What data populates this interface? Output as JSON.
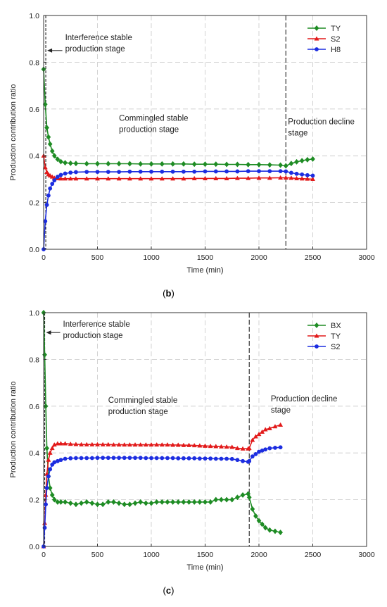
{
  "chart_data": [
    {
      "type": "line",
      "panel_label": "b",
      "xlabel": "Time (min)",
      "ylabel": "Production contribution ratio",
      "xlim": [
        0,
        3000
      ],
      "ylim": [
        0,
        1.0
      ],
      "xticks": [
        0,
        500,
        1000,
        1500,
        2000,
        2500,
        3000
      ],
      "yticks": [
        0.0,
        0.2,
        0.4,
        0.6,
        0.8,
        1.0
      ],
      "grid": true,
      "legend_position": "top-right",
      "stage_boundaries": [
        20,
        2250
      ],
      "annotations": [
        {
          "lines": [
            "Interference stable",
            "production stage"
          ],
          "x": 200,
          "y": 0.895,
          "arrow_to": [
            20,
            0.85
          ]
        },
        {
          "lines": [
            "Commingled stable",
            "production stage"
          ],
          "x": 700,
          "y": 0.55
        },
        {
          "lines": [
            "Production decline",
            "stage"
          ],
          "x": 2270,
          "y": 0.535
        }
      ],
      "series": [
        {
          "name": "TY",
          "color": "#1e8c24",
          "marker": "diamond",
          "x": [
            0,
            15,
            30,
            45,
            60,
            80,
            100,
            130,
            160,
            200,
            250,
            300,
            400,
            500,
            600,
            700,
            800,
            900,
            1000,
            1100,
            1200,
            1300,
            1400,
            1500,
            1600,
            1700,
            1800,
            1900,
            2000,
            2100,
            2200,
            2250,
            2300,
            2350,
            2400,
            2450,
            2500
          ],
          "y": [
            0.77,
            0.62,
            0.52,
            0.48,
            0.45,
            0.42,
            0.4,
            0.385,
            0.375,
            0.37,
            0.368,
            0.367,
            0.366,
            0.366,
            0.366,
            0.366,
            0.366,
            0.365,
            0.365,
            0.365,
            0.365,
            0.365,
            0.364,
            0.364,
            0.364,
            0.363,
            0.363,
            0.362,
            0.362,
            0.361,
            0.36,
            0.357,
            0.367,
            0.374,
            0.379,
            0.383,
            0.386
          ]
        },
        {
          "name": "S2",
          "color": "#e21a1a",
          "marker": "triangle",
          "x": [
            0,
            15,
            30,
            45,
            60,
            80,
            100,
            130,
            160,
            200,
            250,
            300,
            400,
            500,
            600,
            700,
            800,
            900,
            1000,
            1100,
            1200,
            1300,
            1400,
            1500,
            1600,
            1700,
            1800,
            1900,
            2000,
            2100,
            2200,
            2250,
            2300,
            2350,
            2400,
            2450,
            2500
          ],
          "y": [
            0.4,
            0.35,
            0.33,
            0.32,
            0.315,
            0.31,
            0.305,
            0.303,
            0.302,
            0.302,
            0.302,
            0.302,
            0.302,
            0.302,
            0.302,
            0.302,
            0.302,
            0.302,
            0.302,
            0.302,
            0.302,
            0.302,
            0.303,
            0.303,
            0.303,
            0.303,
            0.304,
            0.304,
            0.305,
            0.305,
            0.306,
            0.306,
            0.305,
            0.303,
            0.302,
            0.301,
            0.3
          ]
        },
        {
          "name": "H8",
          "color": "#1c2de0",
          "marker": "circle",
          "x": [
            0,
            15,
            30,
            45,
            60,
            80,
            100,
            130,
            160,
            200,
            250,
            300,
            400,
            500,
            600,
            700,
            800,
            900,
            1000,
            1100,
            1200,
            1300,
            1400,
            1500,
            1600,
            1700,
            1800,
            1900,
            2000,
            2100,
            2200,
            2250,
            2300,
            2350,
            2400,
            2450,
            2500
          ],
          "y": [
            0.0,
            0.12,
            0.19,
            0.23,
            0.26,
            0.28,
            0.295,
            0.31,
            0.318,
            0.324,
            0.328,
            0.33,
            0.331,
            0.331,
            0.331,
            0.331,
            0.332,
            0.332,
            0.332,
            0.332,
            0.332,
            0.332,
            0.332,
            0.333,
            0.333,
            0.333,
            0.333,
            0.334,
            0.334,
            0.334,
            0.334,
            0.333,
            0.327,
            0.323,
            0.32,
            0.317,
            0.315
          ]
        }
      ]
    },
    {
      "type": "line",
      "panel_label": "c",
      "xlabel": "Time (min)",
      "ylabel": "Production contribution ratio",
      "xlim": [
        0,
        3000
      ],
      "ylim": [
        0,
        1.0
      ],
      "xticks": [
        0,
        500,
        1000,
        1500,
        2000,
        2500,
        3000
      ],
      "yticks": [
        0.0,
        0.2,
        0.4,
        0.6,
        0.8,
        1.0
      ],
      "grid": true,
      "legend_position": "top-right",
      "stage_boundaries": [
        10,
        1910
      ],
      "annotations": [
        {
          "lines": [
            "Interference stable",
            "production stage"
          ],
          "x": 180,
          "y": 0.94,
          "arrow_to": [
            10,
            0.915
          ]
        },
        {
          "lines": [
            "Commingled stable",
            "production stage"
          ],
          "x": 600,
          "y": 0.615
        },
        {
          "lines": [
            "Production decline",
            "stage"
          ],
          "x": 2110,
          "y": 0.62
        }
      ],
      "series": [
        {
          "name": "BX",
          "color": "#1e8c24",
          "marker": "diamond",
          "x": [
            0,
            10,
            20,
            30,
            45,
            60,
            80,
            100,
            130,
            160,
            200,
            250,
            300,
            350,
            400,
            450,
            500,
            550,
            600,
            650,
            700,
            750,
            800,
            850,
            900,
            950,
            1000,
            1050,
            1100,
            1150,
            1200,
            1250,
            1300,
            1350,
            1400,
            1450,
            1500,
            1550,
            1600,
            1650,
            1700,
            1750,
            1800,
            1850,
            1900,
            1910,
            1940,
            1970,
            2000,
            2030,
            2060,
            2100,
            2150,
            2200
          ],
          "y": [
            1.0,
            0.82,
            0.6,
            0.42,
            0.3,
            0.25,
            0.22,
            0.2,
            0.19,
            0.19,
            0.19,
            0.185,
            0.18,
            0.185,
            0.19,
            0.185,
            0.18,
            0.18,
            0.19,
            0.19,
            0.185,
            0.18,
            0.18,
            0.185,
            0.19,
            0.185,
            0.185,
            0.19,
            0.19,
            0.19,
            0.19,
            0.19,
            0.19,
            0.19,
            0.19,
            0.19,
            0.19,
            0.19,
            0.2,
            0.2,
            0.2,
            0.2,
            0.21,
            0.22,
            0.225,
            0.21,
            0.16,
            0.13,
            0.11,
            0.095,
            0.08,
            0.07,
            0.065,
            0.06
          ]
        },
        {
          "name": "TY",
          "color": "#e21a1a",
          "marker": "triangle",
          "x": [
            0,
            10,
            20,
            30,
            45,
            60,
            80,
            100,
            130,
            160,
            200,
            250,
            300,
            350,
            400,
            450,
            500,
            550,
            600,
            650,
            700,
            750,
            800,
            850,
            900,
            950,
            1000,
            1050,
            1100,
            1150,
            1200,
            1250,
            1300,
            1350,
            1400,
            1450,
            1500,
            1550,
            1600,
            1650,
            1700,
            1750,
            1800,
            1850,
            1900,
            1910,
            1940,
            1970,
            2000,
            2030,
            2060,
            2100,
            2150,
            2200
          ],
          "y": [
            0.0,
            0.1,
            0.22,
            0.31,
            0.37,
            0.4,
            0.42,
            0.435,
            0.44,
            0.44,
            0.44,
            0.438,
            0.437,
            0.436,
            0.436,
            0.436,
            0.436,
            0.436,
            0.436,
            0.435,
            0.435,
            0.435,
            0.435,
            0.435,
            0.435,
            0.435,
            0.435,
            0.435,
            0.435,
            0.435,
            0.434,
            0.434,
            0.433,
            0.433,
            0.432,
            0.431,
            0.43,
            0.429,
            0.428,
            0.427,
            0.426,
            0.425,
            0.42,
            0.418,
            0.418,
            0.42,
            0.455,
            0.47,
            0.48,
            0.49,
            0.5,
            0.505,
            0.513,
            0.52
          ]
        },
        {
          "name": "S2",
          "color": "#1c2de0",
          "marker": "circle",
          "x": [
            0,
            10,
            20,
            30,
            45,
            60,
            80,
            100,
            130,
            160,
            200,
            250,
            300,
            350,
            400,
            450,
            500,
            550,
            600,
            650,
            700,
            750,
            800,
            850,
            900,
            950,
            1000,
            1050,
            1100,
            1150,
            1200,
            1250,
            1300,
            1350,
            1400,
            1450,
            1500,
            1550,
            1600,
            1650,
            1700,
            1750,
            1800,
            1850,
            1900,
            1910,
            1940,
            1970,
            2000,
            2030,
            2060,
            2100,
            2150,
            2200
          ],
          "y": [
            0.0,
            0.08,
            0.18,
            0.25,
            0.3,
            0.33,
            0.35,
            0.36,
            0.365,
            0.37,
            0.375,
            0.377,
            0.378,
            0.378,
            0.378,
            0.378,
            0.379,
            0.379,
            0.379,
            0.379,
            0.379,
            0.379,
            0.379,
            0.379,
            0.379,
            0.378,
            0.378,
            0.378,
            0.378,
            0.378,
            0.378,
            0.377,
            0.377,
            0.377,
            0.377,
            0.376,
            0.376,
            0.376,
            0.375,
            0.375,
            0.375,
            0.374,
            0.37,
            0.365,
            0.362,
            0.365,
            0.385,
            0.395,
            0.405,
            0.41,
            0.415,
            0.42,
            0.422,
            0.424
          ]
        }
      ]
    }
  ]
}
